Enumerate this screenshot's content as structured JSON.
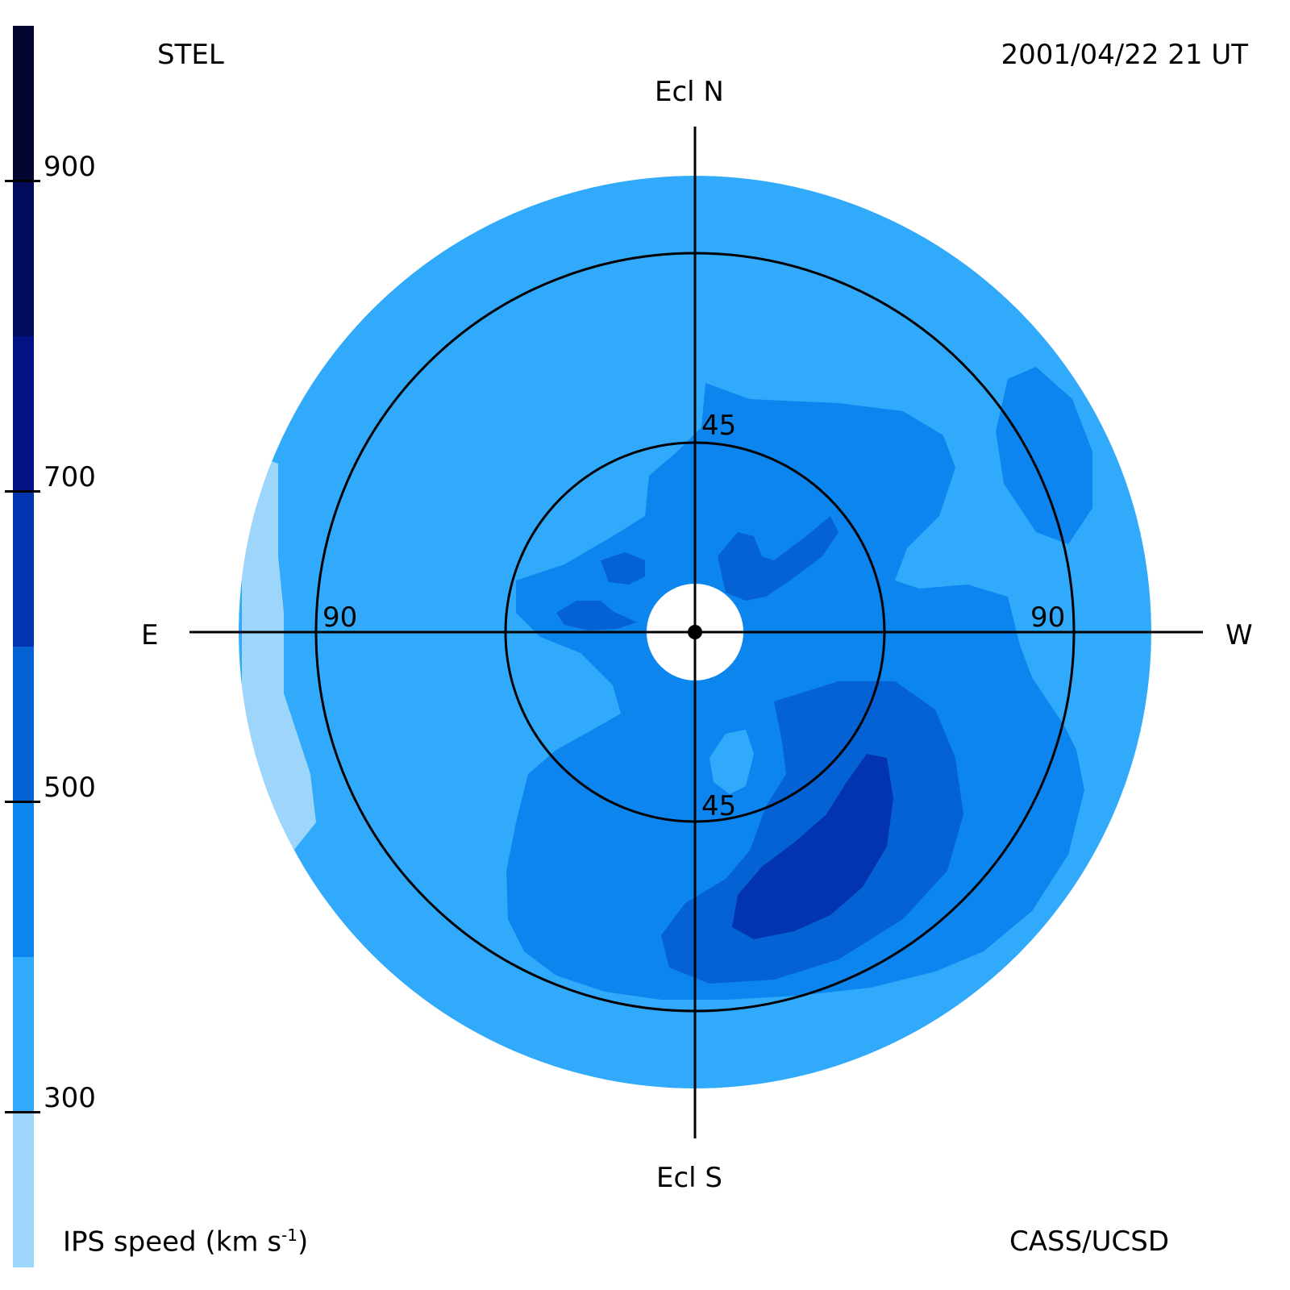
{
  "chart_data": {
    "type": "heatmap",
    "projection": "fisheye sky map centered on the Sun (ecliptic coordinates)",
    "observatory": "STEL",
    "timestamp": "2001/04/22 21 UT",
    "credit": "CASS/UCSD",
    "direction_labels": {
      "north": "Ecl N",
      "south": "Ecl S",
      "east": "E",
      "west": "W"
    },
    "elongation_rings_deg": [
      45,
      90
    ],
    "ring_labels": {
      "inner_top": "45",
      "inner_bottom": "45",
      "outer_left": "90",
      "outer_right": "90"
    },
    "colorbar": {
      "title": "IPS speed (km s",
      "title_sup": "-1",
      "title_close": ")",
      "range": [
        200,
        1000
      ],
      "tick_values": [
        300,
        500,
        700,
        900
      ],
      "tick_labels": [
        "300",
        "500",
        "700",
        "900"
      ],
      "levels": [
        {
          "min": 200,
          "max": 300,
          "color": "#9dd5fb"
        },
        {
          "min": 300,
          "max": 400,
          "color": "#31aafc"
        },
        {
          "min": 400,
          "max": 500,
          "color": "#0c86ee"
        },
        {
          "min": 500,
          "max": 600,
          "color": "#0462d5"
        },
        {
          "min": 600,
          "max": 700,
          "color": "#0234b0"
        },
        {
          "min": 700,
          "max": 800,
          "color": "#021283"
        },
        {
          "min": 800,
          "max": 900,
          "color": "#020a5c"
        },
        {
          "min": 900,
          "max": 1000,
          "color": "#01052f"
        }
      ]
    },
    "regions": [
      {
        "name": "low-speed east limb",
        "speed_band": "200-300"
      },
      {
        "name": "background",
        "speed_band": "300-400"
      },
      {
        "name": "northern structure",
        "speed_band": "400-500"
      },
      {
        "name": "southwest structure",
        "speed_band": "400-500"
      },
      {
        "name": "northwest patch",
        "speed_band": "400-500"
      },
      {
        "name": "southwest core",
        "speed_band": "500-600"
      },
      {
        "name": "southwest peak",
        "speed_band": "600-700"
      }
    ]
  }
}
